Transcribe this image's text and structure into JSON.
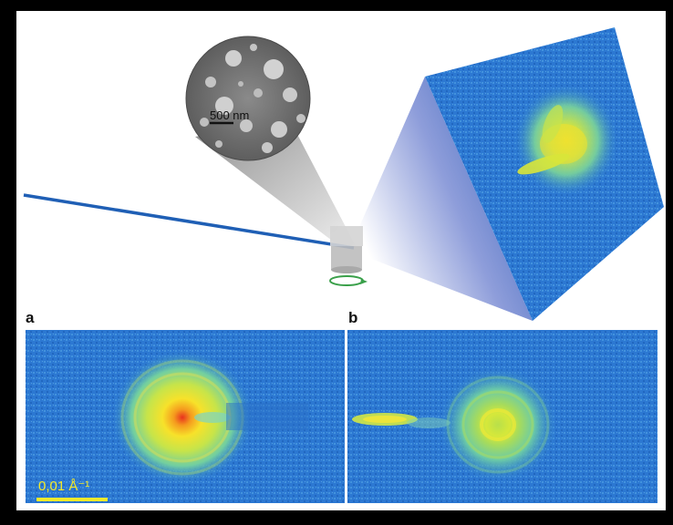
{
  "sample_inset": {
    "scale_label": "500 nm"
  },
  "panels": {
    "a": {
      "letter": "a"
    },
    "b": {
      "letter": "b"
    }
  },
  "scale_bar": {
    "label": "0,01 Å⁻¹",
    "color": "#f4ea2a"
  },
  "colors": {
    "beam": "#1f5fb5",
    "diffraction_background": "#2f7fd6",
    "intensity_low": "#3aa0e0",
    "intensity_mid": "#b8e04a",
    "intensity_high": "#f7d320",
    "intensity_peak": "#e8321e",
    "sem_background": "#7a7a7a",
    "sem_particles": "#c9c9c9"
  }
}
